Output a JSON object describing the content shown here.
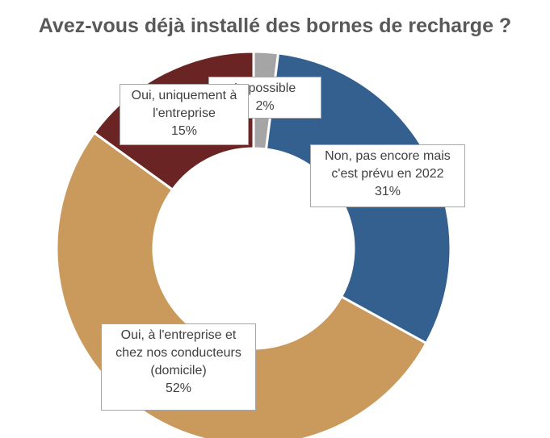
{
  "chart_data": {
    "type": "pie",
    "variant": "donut",
    "title": "Avez-vous déjà installé des bornes de recharge ?",
    "slices": [
      {
        "label_lines": [
          "Impossible"
        ],
        "value_label": "2%",
        "value": 2,
        "color": "#a5a5a5"
      },
      {
        "label_lines": [
          "Non, pas encore mais",
          "c'est prévu en 2022"
        ],
        "value_label": "31%",
        "value": 31,
        "color": "#34608f"
      },
      {
        "label_lines": [
          "Oui, à l'entreprise et",
          "chez nos conducteurs",
          "(domicile)"
        ],
        "value_label": "52%",
        "value": 52,
        "color": "#c99a5c"
      },
      {
        "label_lines": [
          "Oui, uniquement à",
          "l'entreprise"
        ],
        "value_label": "15%",
        "value": 15,
        "color": "#6b2424"
      }
    ],
    "legend": "none",
    "data_labels": "callouts"
  }
}
